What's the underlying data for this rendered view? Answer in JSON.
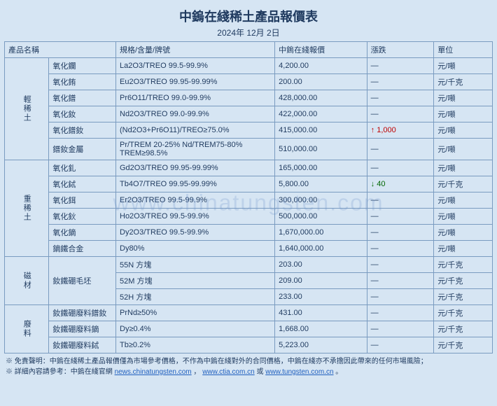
{
  "title": "中鎢在綫稀土產品報價表",
  "date": "2024年 12月 2日",
  "watermark": "www.chinatungsten.com",
  "headers": {
    "name": "產品名稱",
    "spec": "規格/含量/牌號",
    "price": "中鎢在綫報價",
    "change": "漲跌",
    "unit": "單位"
  },
  "groups": [
    {
      "label": "輕稀土",
      "rows": [
        {
          "name": "氧化鑭",
          "spec": "La2O3/TREO 99.5-99.9%",
          "price": "4,200.00",
          "change": "—",
          "unit": "元/噸"
        },
        {
          "name": "氧化銪",
          "spec": "Eu2O3/TREO 99.95-99.99%",
          "price": "200.00",
          "change": "—",
          "unit": "元/千克"
        },
        {
          "name": "氧化鐠",
          "spec": "Pr6O11/TREO 99.0-99.9%",
          "price": "428,000.00",
          "change": "—",
          "unit": "元/噸"
        },
        {
          "name": "氧化釹",
          "spec": "Nd2O3/TREO 99.0-99.9%",
          "price": "422,000.00",
          "change": "—",
          "unit": "元/噸"
        },
        {
          "name": "氧化鐠釹",
          "spec": "(Nd2O3+Pr6O11)/TREO≥75.0%",
          "price": "415,000.00",
          "change": "↑ 1,000",
          "changeClass": "up",
          "unit": "元/噸"
        },
        {
          "name": "鐠釹金屬",
          "spec": "Pr/TREM 20-25% Nd/TREM75-80% TREM≥98.5%",
          "price": "510,000.00",
          "change": "—",
          "unit": "元/噸"
        }
      ]
    },
    {
      "label": "重稀土",
      "rows": [
        {
          "name": "氧化釓",
          "spec": "Gd2O3/TREO 99.95-99.99%",
          "price": "165,000.00",
          "change": "—",
          "unit": "元/噸"
        },
        {
          "name": "氧化鋱",
          "spec": "Tb4O7/TREO 99.95-99.99%",
          "price": "5,800.00",
          "change": "↓ 40",
          "changeClass": "down",
          "unit": "元/千克"
        },
        {
          "name": "氧化鉺",
          "spec": "Er2O3/TREO 99.5-99.9%",
          "price": "300,000.00",
          "change": "—",
          "unit": "元/噸"
        },
        {
          "name": "氧化鈥",
          "spec": "Ho2O3/TREO 99.5-99.9%",
          "price": "500,000.00",
          "change": "—",
          "unit": "元/噸"
        },
        {
          "name": "氧化鏑",
          "spec": "Dy2O3/TREO 99.5-99.9%",
          "price": "1,670,000.00",
          "change": "—",
          "unit": "元/噸"
        },
        {
          "name": "鏑鐵合金",
          "spec": "Dy80%",
          "price": "1,640,000.00",
          "change": "—",
          "unit": "元/噸"
        }
      ]
    },
    {
      "label": "磁材",
      "rows": [
        {
          "name": "釹鐵硼毛坯",
          "nameRowspan": 3,
          "spec": "55N 方塊",
          "price": "203.00",
          "change": "—",
          "unit": "元/千克"
        },
        {
          "spec": "52M 方塊",
          "price": "209.00",
          "change": "—",
          "unit": "元/千克"
        },
        {
          "spec": "52H 方塊",
          "price": "233.00",
          "change": "—",
          "unit": "元/千克"
        }
      ]
    },
    {
      "label": "廢料",
      "rows": [
        {
          "name": "釹鐵硼廢料鐠釹",
          "spec": "PrNd≥50%",
          "price": "431.00",
          "change": "—",
          "unit": "元/千克"
        },
        {
          "name": "釹鐵硼廢料鏑",
          "spec": "Dy≥0.4%",
          "price": "1,668.00",
          "change": "—",
          "unit": "元/千克"
        },
        {
          "name": "釹鐵硼廢料鋱",
          "spec": "Tb≥0.2%",
          "price": "5,223.00",
          "change": "—",
          "unit": "元/千克"
        }
      ]
    }
  ],
  "footer": {
    "line1_prefix": "※ 免責聲明：中鎢在綫稀土產品報價僅為市場參考價格，不作為中鎢在綫對外的合同價格，中鎢在綫亦不承擔因此帶來的任何市場風險；",
    "line2_prefix": "※ 詳細內容請參考：中鎢在綫官網 ",
    "link1": "news.chinatungsten.com",
    "sep1": "，",
    "link2": "www.ctia.com.cn",
    "sep2": " 或 ",
    "link3": "www.tungsten.com.cn",
    "suffix": "。"
  }
}
